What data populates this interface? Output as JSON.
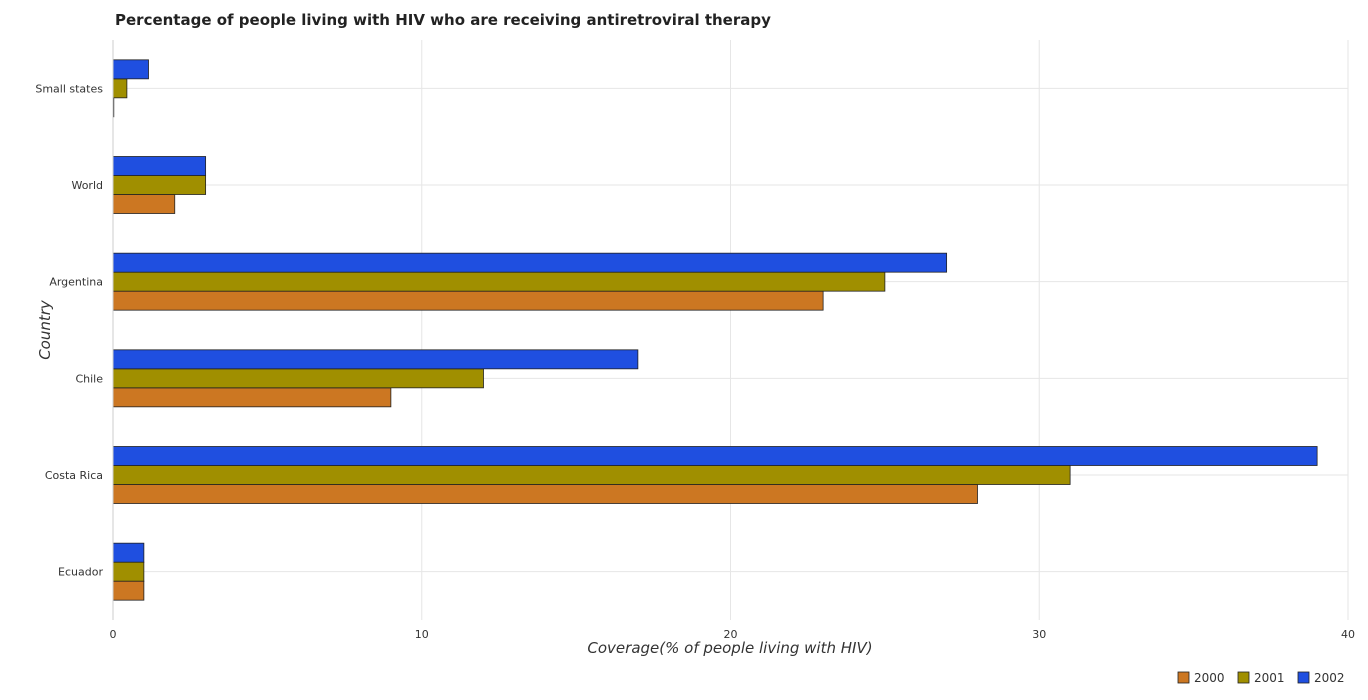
{
  "chart_data": {
    "type": "bar",
    "orientation": "horizontal",
    "title": "Percentage of people living with HIV who are receiving antiretroviral therapy",
    "xlabel": "Coverage(% of people living with HIV)",
    "ylabel": "Country",
    "xlim": [
      0,
      40
    ],
    "xticks": [
      0,
      10,
      20,
      30,
      40
    ],
    "grid": true,
    "legend_position": "bottom-right",
    "categories": [
      "Small states",
      "World",
      "Argentina",
      "Chile",
      "Costa Rica",
      "Ecuador"
    ],
    "series": [
      {
        "name": "2000",
        "color": "#cc7722",
        "values": [
          0.02,
          2,
          23,
          9,
          28,
          1
        ]
      },
      {
        "name": "2001",
        "color": "#a08f00",
        "values": [
          0.45,
          3,
          25,
          12,
          31,
          1
        ]
      },
      {
        "name": "2002",
        "color": "#1f4fe0",
        "values": [
          1.15,
          3,
          27,
          17,
          39,
          1
        ]
      }
    ]
  }
}
